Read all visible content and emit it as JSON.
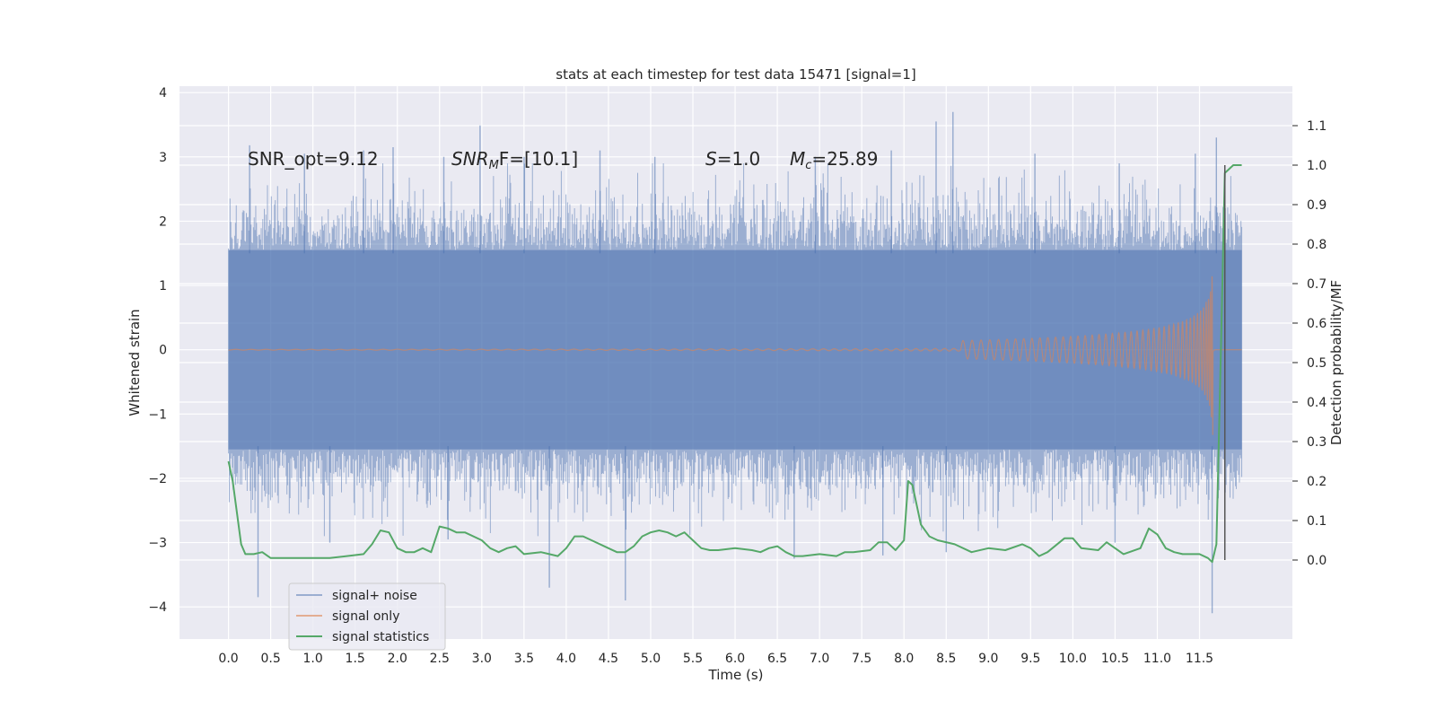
{
  "chart_data": {
    "type": "line",
    "title": "stats at each timestep for test data 15471 [signal=1]",
    "xlabel": "Time (s)",
    "ylabel": "Whitened strain",
    "ylabel_right": "Detection probability/MF",
    "xlim": [
      -0.58,
      12.6
    ],
    "ylim_left": [
      -4.5,
      4.1
    ],
    "ylim_right": [
      -0.2,
      1.2
    ],
    "x_ticks": [
      "0.0",
      "0.5",
      "1.0",
      "1.5",
      "2.0",
      "2.5",
      "3.0",
      "3.5",
      "4.0",
      "4.5",
      "5.0",
      "5.5",
      "6.0",
      "6.5",
      "7.0",
      "7.5",
      "8.0",
      "8.5",
      "9.0",
      "9.5",
      "10.0",
      "10.5",
      "11.0",
      "11.5"
    ],
    "y_ticks_left": [
      "4",
      "3",
      "2",
      "1",
      "0",
      "−1",
      "−2",
      "−3",
      "−4"
    ],
    "y_ticks_right": [
      "1.1",
      "1.0",
      "0.9",
      "0.8",
      "0.7",
      "0.6",
      "0.5",
      "0.4",
      "0.3",
      "0.2",
      "0.1",
      "0.0"
    ],
    "grid": true,
    "legend_position": "lower-left",
    "annotations": [
      "SNR_opt=9.12",
      "SNR",
      "M",
      "F=[10.1]",
      "S",
      "=1.0",
      "M",
      "c",
      "=25.89"
    ],
    "vline_x": 11.8,
    "colors": {
      "background": "#eaeaf2",
      "grid": "#ffffff",
      "noise": "#4c72b0",
      "signal": "#dd8452",
      "stats": "#55a868",
      "vline": "#555555"
    },
    "series": [
      {
        "name": "signal+ noise",
        "axis": "left",
        "style": "dense noise band, approx range -2.0 to 2.0 with spikes",
        "envelope_x": [
          0.0,
          12.0
        ],
        "envelope_abs": 1.55,
        "spike_highs": [
          {
            "x": 0.25,
            "y": 3.18
          },
          {
            "x": 0.9,
            "y": 3.05
          },
          {
            "x": 1.6,
            "y": 3.1
          },
          {
            "x": 1.95,
            "y": 3.15
          },
          {
            "x": 2.55,
            "y": 3.0
          },
          {
            "x": 2.98,
            "y": 3.49
          },
          {
            "x": 3.5,
            "y": 3.0
          },
          {
            "x": 4.4,
            "y": 3.1
          },
          {
            "x": 5.05,
            "y": 3.0
          },
          {
            "x": 6.95,
            "y": 3.0
          },
          {
            "x": 7.85,
            "y": 3.1
          },
          {
            "x": 8.38,
            "y": 3.55
          },
          {
            "x": 8.58,
            "y": 3.7
          },
          {
            "x": 9.55,
            "y": 3.05
          },
          {
            "x": 10.55,
            "y": 2.9
          },
          {
            "x": 11.45,
            "y": 3.05
          },
          {
            "x": 11.7,
            "y": 3.3
          }
        ],
        "spike_lows": [
          {
            "x": 0.35,
            "y": -3.85
          },
          {
            "x": 1.2,
            "y": -3.0
          },
          {
            "x": 2.6,
            "y": -2.95
          },
          {
            "x": 3.8,
            "y": -3.7
          },
          {
            "x": 4.7,
            "y": -3.9
          },
          {
            "x": 6.7,
            "y": -3.25
          },
          {
            "x": 7.75,
            "y": -3.2
          },
          {
            "x": 8.5,
            "y": -3.15
          },
          {
            "x": 10.5,
            "y": -3.0
          },
          {
            "x": 11.65,
            "y": -4.1
          }
        ]
      },
      {
        "name": "signal only",
        "axis": "left",
        "style": "chirp",
        "x_start": 0.0,
        "x_merger": 11.66,
        "peak_amplitude": 2.0
      },
      {
        "name": "signal statistics",
        "axis": "right",
        "x": [
          0.0,
          0.05,
          0.1,
          0.15,
          0.2,
          0.3,
          0.4,
          0.5,
          0.6,
          0.8,
          1.0,
          1.2,
          1.4,
          1.6,
          1.7,
          1.8,
          1.9,
          2.0,
          2.1,
          2.2,
          2.3,
          2.4,
          2.5,
          2.6,
          2.7,
          2.8,
          3.0,
          3.1,
          3.2,
          3.3,
          3.4,
          3.5,
          3.7,
          3.8,
          3.9,
          4.0,
          4.1,
          4.2,
          4.3,
          4.5,
          4.6,
          4.7,
          4.8,
          4.9,
          5.0,
          5.1,
          5.2,
          5.3,
          5.4,
          5.5,
          5.6,
          5.7,
          5.8,
          6.0,
          6.2,
          6.3,
          6.4,
          6.5,
          6.6,
          6.7,
          6.8,
          7.0,
          7.2,
          7.3,
          7.4,
          7.6,
          7.7,
          7.8,
          7.9,
          8.0,
          8.05,
          8.1,
          8.2,
          8.3,
          8.4,
          8.6,
          8.8,
          9.0,
          9.2,
          9.4,
          9.5,
          9.6,
          9.7,
          9.9,
          10.0,
          10.1,
          10.3,
          10.4,
          10.5,
          10.6,
          10.8,
          10.9,
          11.0,
          11.1,
          11.2,
          11.3,
          11.5,
          11.6,
          11.65,
          11.7,
          11.75,
          11.8,
          11.85,
          11.9,
          11.95,
          12.0
        ],
        "values": [
          0.25,
          0.2,
          0.12,
          0.04,
          0.015,
          0.015,
          0.02,
          0.005,
          0.005,
          0.005,
          0.005,
          0.005,
          0.01,
          0.015,
          0.04,
          0.075,
          0.07,
          0.03,
          0.02,
          0.02,
          0.03,
          0.02,
          0.085,
          0.08,
          0.07,
          0.07,
          0.05,
          0.03,
          0.02,
          0.03,
          0.035,
          0.015,
          0.02,
          0.015,
          0.01,
          0.03,
          0.06,
          0.06,
          0.05,
          0.03,
          0.02,
          0.02,
          0.035,
          0.06,
          0.07,
          0.075,
          0.07,
          0.06,
          0.07,
          0.05,
          0.03,
          0.025,
          0.025,
          0.03,
          0.025,
          0.02,
          0.03,
          0.035,
          0.02,
          0.01,
          0.01,
          0.015,
          0.01,
          0.02,
          0.02,
          0.025,
          0.045,
          0.045,
          0.025,
          0.05,
          0.2,
          0.19,
          0.09,
          0.06,
          0.05,
          0.04,
          0.02,
          0.03,
          0.025,
          0.04,
          0.03,
          0.01,
          0.02,
          0.055,
          0.055,
          0.03,
          0.025,
          0.045,
          0.03,
          0.015,
          0.03,
          0.08,
          0.065,
          0.03,
          0.02,
          0.015,
          0.015,
          0.005,
          -0.005,
          0.04,
          0.5,
          0.98,
          0.99,
          1.0,
          1.0,
          1.0
        ]
      }
    ]
  }
}
